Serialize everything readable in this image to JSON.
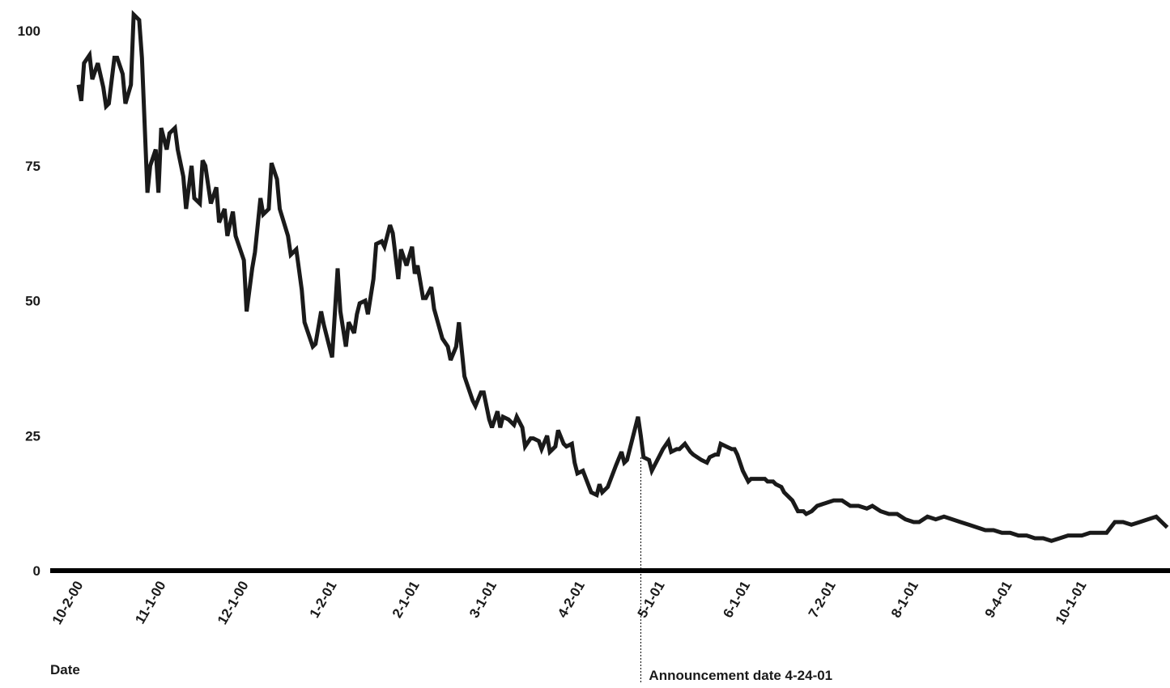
{
  "chart_data": {
    "type": "line",
    "x_label": "Date",
    "annotation": {
      "text": "Announcement date 4-24-01",
      "x": "2001-04-24"
    },
    "color": "#1a1a1a",
    "x": [
      "2000-10-02",
      "2000-10-03",
      "2000-10-04",
      "2000-10-06",
      "2000-10-07",
      "2000-10-09",
      "2000-10-11",
      "2000-10-12",
      "2000-10-13",
      "2000-10-15",
      "2000-10-16",
      "2000-10-18",
      "2000-10-19",
      "2000-10-21",
      "2000-10-22",
      "2000-10-24",
      "2000-10-25",
      "2000-10-27",
      "2000-10-28",
      "2000-10-30",
      "2000-10-31",
      "2000-11-01",
      "2000-11-03",
      "2000-11-04",
      "2000-11-06",
      "2000-11-07",
      "2000-11-09",
      "2000-11-10",
      "2000-11-12",
      "2000-11-13",
      "2000-11-15",
      "2000-11-16",
      "2000-11-17",
      "2000-11-19",
      "2000-11-21",
      "2000-11-22",
      "2000-11-24",
      "2000-11-25",
      "2000-11-27",
      "2000-11-28",
      "2000-12-01",
      "2000-12-02",
      "2000-12-04",
      "2000-12-05",
      "2000-12-07",
      "2000-12-08",
      "2000-12-10",
      "2000-12-11",
      "2000-12-13",
      "2000-12-14",
      "2000-12-17",
      "2000-12-18",
      "2000-12-20",
      "2000-12-22",
      "2000-12-23",
      "2000-12-26",
      "2000-12-27",
      "2000-12-29",
      "2000-12-30",
      "2001-01-01",
      "2001-01-02",
      "2001-01-04",
      "2001-01-05",
      "2001-01-07",
      "2001-01-08",
      "2001-01-10",
      "2001-01-11",
      "2001-01-12",
      "2001-01-14",
      "2001-01-15",
      "2001-01-17",
      "2001-01-18",
      "2001-01-20",
      "2001-01-21",
      "2001-01-23",
      "2001-01-24",
      "2001-01-26",
      "2001-01-27",
      "2001-01-29",
      "2001-01-31",
      "2001-02-01",
      "2001-02-02",
      "2001-02-04",
      "2001-02-05",
      "2001-02-07",
      "2001-02-08",
      "2001-02-11",
      "2001-02-13",
      "2001-02-14",
      "2001-02-16",
      "2001-02-17",
      "2001-02-19",
      "2001-02-20",
      "2001-02-22",
      "2001-02-23",
      "2001-02-25",
      "2001-02-26",
      "2001-02-28",
      "2001-03-01",
      "2001-03-03",
      "2001-03-04",
      "2001-03-05",
      "2001-03-07",
      "2001-03-09",
      "2001-03-10",
      "2001-03-12",
      "2001-03-13",
      "2001-03-15",
      "2001-03-16",
      "2001-03-18",
      "2001-03-19",
      "2001-03-21",
      "2001-03-22",
      "2001-03-24",
      "2001-03-25",
      "2001-03-27",
      "2001-03-28",
      "2001-03-30",
      "2001-03-31",
      "2001-04-01",
      "2001-04-03",
      "2001-04-06",
      "2001-04-08",
      "2001-04-09",
      "2001-04-10",
      "2001-04-12",
      "2001-04-15",
      "2001-04-17",
      "2001-04-18",
      "2001-04-19",
      "2001-04-21",
      "2001-04-23",
      "2001-04-24",
      "2001-04-25",
      "2001-04-27",
      "2001-04-28",
      "2001-05-01",
      "2001-05-02",
      "2001-05-04",
      "2001-05-05",
      "2001-05-07",
      "2001-05-08",
      "2001-05-10",
      "2001-05-12",
      "2001-05-13",
      "2001-05-16",
      "2001-05-18",
      "2001-05-19",
      "2001-05-21",
      "2001-05-22",
      "2001-05-23",
      "2001-05-25",
      "2001-05-27",
      "2001-05-28",
      "2001-05-29",
      "2001-05-31",
      "2001-06-02",
      "2001-06-03",
      "2001-06-05",
      "2001-06-06",
      "2001-06-08",
      "2001-06-09",
      "2001-06-11",
      "2001-06-12",
      "2001-06-14",
      "2001-06-15",
      "2001-06-18",
      "2001-06-20",
      "2001-06-22",
      "2001-06-23",
      "2001-06-25",
      "2001-06-27",
      "2001-06-30",
      "2001-07-03",
      "2001-07-06",
      "2001-07-09",
      "2001-07-12",
      "2001-07-15",
      "2001-07-17",
      "2001-07-20",
      "2001-07-23",
      "2001-07-26",
      "2001-07-29",
      "2001-08-01",
      "2001-08-03",
      "2001-08-06",
      "2001-08-09",
      "2001-08-12",
      "2001-08-15",
      "2001-08-18",
      "2001-08-21",
      "2001-08-24",
      "2001-08-27",
      "2001-08-30",
      "2001-09-02",
      "2001-09-05",
      "2001-09-08",
      "2001-09-11",
      "2001-09-14",
      "2001-09-17",
      "2001-09-20",
      "2001-09-23",
      "2001-09-26",
      "2001-09-29",
      "2001-10-01",
      "2001-10-04",
      "2001-10-07",
      "2001-10-10",
      "2001-10-13",
      "2001-10-16",
      "2001-10-19",
      "2001-10-22",
      "2001-10-25",
      "2001-10-28",
      "2001-10-30",
      "2001-11-01"
    ],
    "values": [
      90,
      87,
      94,
      95.5,
      91,
      94,
      89.5,
      86,
      86.5,
      95,
      95,
      92,
      86.5,
      90,
      103,
      102,
      95,
      70,
      75,
      78,
      70,
      82,
      78,
      81,
      82,
      78,
      73,
      67,
      75,
      69,
      68,
      76,
      75,
      68,
      71,
      64.5,
      67,
      62,
      66.5,
      62,
      57.5,
      48,
      56,
      59,
      69,
      66,
      67,
      75.5,
      72.5,
      67,
      62,
      58.5,
      59.5,
      52,
      46,
      41.5,
      42,
      48,
      45.5,
      41.5,
      39.5,
      56,
      48,
      41.5,
      46,
      44,
      47.5,
      49.5,
      50,
      47.5,
      54,
      60.5,
      61,
      60,
      64,
      62.5,
      54,
      59.5,
      56.5,
      60,
      55,
      56.5,
      50.5,
      50.5,
      52.5,
      48.5,
      43,
      41.5,
      39,
      41.5,
      46,
      36,
      34.5,
      31.5,
      30.5,
      33,
      33,
      28,
      26.5,
      29.5,
      26.5,
      28.5,
      28,
      27,
      28.5,
      26.5,
      23,
      24.5,
      24.5,
      24,
      22.5,
      25,
      22,
      23,
      26,
      23.5,
      23,
      23.5,
      20,
      18,
      18.5,
      14.5,
      14,
      16,
      14.5,
      15.5,
      19.5,
      22,
      20,
      20.5,
      24.5,
      28.5,
      25,
      21,
      20.5,
      18.5,
      21.5,
      22.5,
      24,
      22,
      22.5,
      22.5,
      23.5,
      22,
      21.5,
      20.5,
      20,
      21,
      21.5,
      21.5,
      23.5,
      23,
      22.5,
      22.5,
      21.5,
      18.5,
      16.5,
      17,
      17,
      17,
      17,
      16.5,
      16.5,
      16,
      15.5,
      14.5,
      13,
      11,
      11,
      10.5,
      11,
      12,
      12.5,
      13,
      13,
      12,
      12,
      11.5,
      12,
      11,
      10.5,
      10.5,
      9.5,
      9,
      9,
      10,
      9.5,
      10,
      9.5,
      9,
      8.5,
      8,
      7.5,
      7.5,
      7,
      7,
      6.5,
      6.5,
      6,
      6,
      5.5,
      6,
      6.5,
      6.5,
      6.5,
      7,
      7,
      7,
      9,
      9,
      8.5,
      9,
      9.5,
      10,
      9,
      8
    ],
    "xlim": [
      "2000-10-02",
      "2001-11-02"
    ],
    "xticks": [
      {
        "value": "2000-10-02",
        "label": "10-2-00"
      },
      {
        "value": "2000-11-01",
        "label": "11-1-00"
      },
      {
        "value": "2000-12-01",
        "label": "12-1-00"
      },
      {
        "value": "2001-01-02",
        "label": "1-2-01"
      },
      {
        "value": "2001-02-01",
        "label": "2-1-01"
      },
      {
        "value": "2001-03-01",
        "label": "3-1-01"
      },
      {
        "value": "2001-04-02",
        "label": "4-2-01"
      },
      {
        "value": "2001-05-01",
        "label": "5-1-01"
      },
      {
        "value": "2001-06-01",
        "label": "6-1-01"
      },
      {
        "value": "2001-07-02",
        "label": "7-2-01"
      },
      {
        "value": "2001-08-01",
        "label": "8-1-01"
      },
      {
        "value": "2001-09-04",
        "label": "9-4-01"
      },
      {
        "value": "2001-10-01",
        "label": "10-1-01"
      }
    ],
    "ylim": [
      0,
      100
    ],
    "yticks": [
      0,
      25,
      50,
      75,
      100
    ],
    "grid": false
  }
}
